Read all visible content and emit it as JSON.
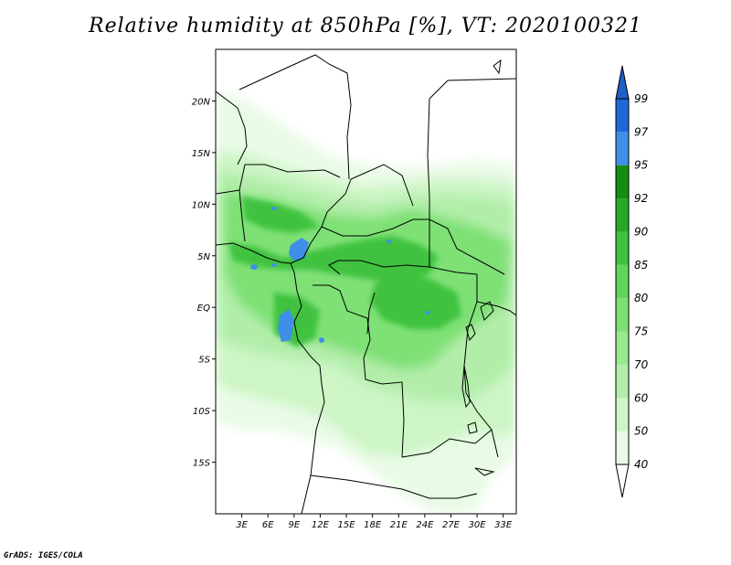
{
  "title": "Relative humidity at 850hPa [%], VT: 2020100321",
  "credit": "GrADS: IGES/COLA",
  "map": {
    "lon_range": [
      0,
      34.5
    ],
    "lat_range": [
      -20,
      25
    ],
    "lat_ticks": [
      {
        "value": 20,
        "label": "20N"
      },
      {
        "value": 15,
        "label": "15N"
      },
      {
        "value": 10,
        "label": "10N"
      },
      {
        "value": 5,
        "label": "5N"
      },
      {
        "value": 0,
        "label": "EQ"
      },
      {
        "value": -5,
        "label": "5S"
      },
      {
        "value": -10,
        "label": "10S"
      },
      {
        "value": -15,
        "label": "15S"
      }
    ],
    "lon_ticks": [
      {
        "value": 3,
        "label": "3E"
      },
      {
        "value": 6,
        "label": "6E"
      },
      {
        "value": 9,
        "label": "9E"
      },
      {
        "value": 12,
        "label": "12E"
      },
      {
        "value": 15,
        "label": "15E"
      },
      {
        "value": 18,
        "label": "18E"
      },
      {
        "value": 21,
        "label": "21E"
      },
      {
        "value": 24,
        "label": "24E"
      },
      {
        "value": 27,
        "label": "27E"
      },
      {
        "value": 30,
        "label": "30E"
      },
      {
        "value": 33,
        "label": "33E"
      }
    ]
  },
  "colorbar": {
    "levels": [
      {
        "label": "40",
        "color": "#ffffff"
      },
      {
        "label": "50",
        "color": "#e9fbe6"
      },
      {
        "label": "60",
        "color": "#cdf5c6"
      },
      {
        "label": "70",
        "color": "#b2eeaa"
      },
      {
        "label": "75",
        "color": "#98e88e"
      },
      {
        "label": "80",
        "color": "#7ee074"
      },
      {
        "label": "85",
        "color": "#5fd55a"
      },
      {
        "label": "90",
        "color": "#3fc23f"
      },
      {
        "label": "92",
        "color": "#27a827"
      },
      {
        "label": "95",
        "color": "#138e13"
      },
      {
        "label": "97",
        "color": "#3f8fe8"
      },
      {
        "label": "99",
        "color": "#1f68d8"
      }
    ],
    "top_color": "#1e5fc8",
    "bottom_color": "#ffffff"
  }
}
